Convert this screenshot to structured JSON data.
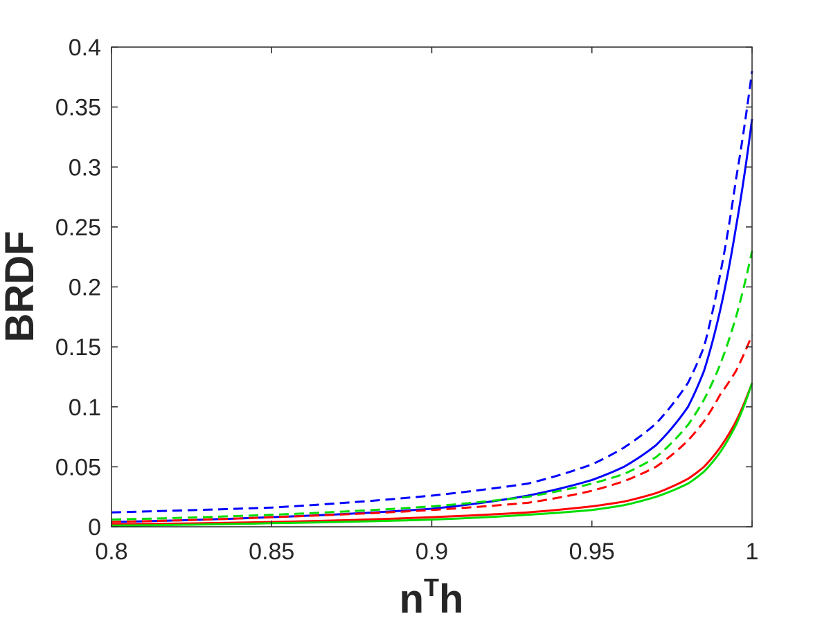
{
  "chart_data": {
    "type": "line",
    "xlabel": {
      "base": "n",
      "sup": "T",
      "rest": "h"
    },
    "ylabel": "BRDF",
    "xlim": [
      0.8,
      1.0
    ],
    "ylim": [
      0,
      0.4
    ],
    "xticks": [
      0.8,
      0.85,
      0.9,
      0.95,
      1.0
    ],
    "xtick_labels": [
      "0.8",
      "0.85",
      "0.9",
      "0.95",
      "1"
    ],
    "yticks": [
      0,
      0.05,
      0.1,
      0.15,
      0.2,
      0.25,
      0.3,
      0.35,
      0.4
    ],
    "ytick_labels": [
      "0",
      "0.05",
      "0.1",
      "0.15",
      "0.2",
      "0.25",
      "0.3",
      "0.35",
      "0.4"
    ],
    "grid": false,
    "box": true,
    "series": [
      {
        "color": "#0000ff",
        "style": "solid",
        "x": [
          0.8,
          0.85,
          0.9,
          0.93,
          0.95,
          0.96,
          0.97,
          0.98,
          0.985,
          0.99,
          0.995,
          1.0
        ],
        "y": [
          0.004,
          0.008,
          0.015,
          0.026,
          0.039,
          0.05,
          0.068,
          0.1,
          0.13,
          0.18,
          0.25,
          0.34
        ]
      },
      {
        "color": "#ff0000",
        "style": "solid",
        "x": [
          0.8,
          0.85,
          0.9,
          0.93,
          0.95,
          0.96,
          0.97,
          0.98,
          0.985,
          0.99,
          0.995,
          1.0
        ],
        "y": [
          0.002,
          0.004,
          0.008,
          0.012,
          0.017,
          0.021,
          0.028,
          0.04,
          0.05,
          0.066,
          0.088,
          0.12
        ]
      },
      {
        "color": "#00dd00",
        "style": "solid",
        "x": [
          0.8,
          0.85,
          0.9,
          0.93,
          0.95,
          0.96,
          0.97,
          0.98,
          0.985,
          0.99,
          0.995,
          1.0
        ],
        "y": [
          0.001,
          0.003,
          0.006,
          0.01,
          0.014,
          0.018,
          0.025,
          0.036,
          0.046,
          0.062,
          0.085,
          0.12
        ]
      },
      {
        "color": "#0000ff",
        "style": "dashed",
        "x": [
          0.8,
          0.85,
          0.9,
          0.93,
          0.95,
          0.96,
          0.97,
          0.98,
          0.985,
          0.99,
          0.995,
          1.0
        ],
        "y": [
          0.012,
          0.016,
          0.026,
          0.036,
          0.052,
          0.066,
          0.086,
          0.12,
          0.15,
          0.21,
          0.29,
          0.38
        ]
      },
      {
        "color": "#00dd00",
        "style": "dashed",
        "x": [
          0.8,
          0.85,
          0.9,
          0.93,
          0.95,
          0.96,
          0.97,
          0.98,
          0.985,
          0.99,
          0.995,
          1.0
        ],
        "y": [
          0.006,
          0.01,
          0.017,
          0.025,
          0.036,
          0.044,
          0.058,
          0.085,
          0.106,
          0.135,
          0.175,
          0.23
        ]
      },
      {
        "color": "#ff0000",
        "style": "dashed",
        "x": [
          0.8,
          0.85,
          0.9,
          0.93,
          0.95,
          0.96,
          0.97,
          0.98,
          0.985,
          0.99,
          0.995,
          1.0
        ],
        "y": [
          0.004,
          0.008,
          0.014,
          0.02,
          0.03,
          0.038,
          0.05,
          0.072,
          0.088,
          0.11,
          0.13,
          0.16
        ]
      }
    ]
  }
}
